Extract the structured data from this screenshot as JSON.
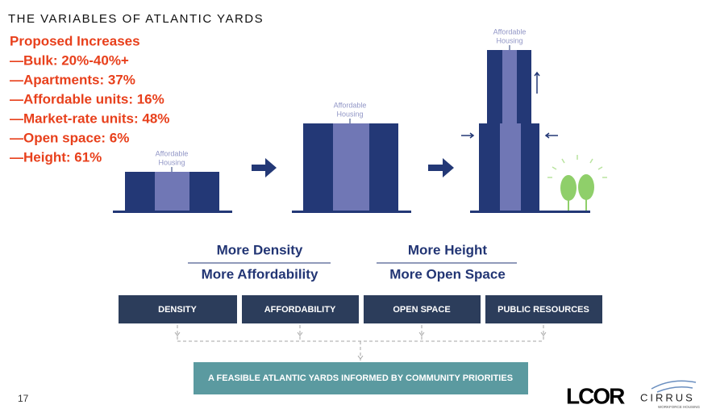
{
  "header": {
    "title": "THE VARIABLES OF ATLANTIC YARDS"
  },
  "increases": {
    "heading": "Proposed Increases",
    "items": [
      "—Bulk: 20%-40%+",
      "—Apartments: 37%",
      "—Affordable units: 16%",
      "—Market-rate units: 48%",
      "—Open space: 6%",
      "—Height: 61%"
    ]
  },
  "buildings": [
    {
      "label": [
        "Affordable",
        "Housing"
      ]
    },
    {
      "label": [
        "Affordable",
        "Housing"
      ]
    },
    {
      "label": [
        "Affordable",
        "Housing"
      ]
    }
  ],
  "outcomes": [
    {
      "top": "More Density",
      "bottom": "More Affordability"
    },
    {
      "top": "More Height",
      "bottom": "More Open Space"
    }
  ],
  "variables": [
    "DENSITY",
    "AFFORDABILITY",
    "OPEN SPACE",
    "PUBLIC RESOURCES"
  ],
  "result": "A FEASIBLE ATLANTIC YARDS  INFORMED BY COMMUNITY PRIORITIES",
  "footer": {
    "page": "17",
    "logo1": "LCOR",
    "logo2": "CIRRUS",
    "logo2_sub": "WORKFORCE HOUSING"
  }
}
